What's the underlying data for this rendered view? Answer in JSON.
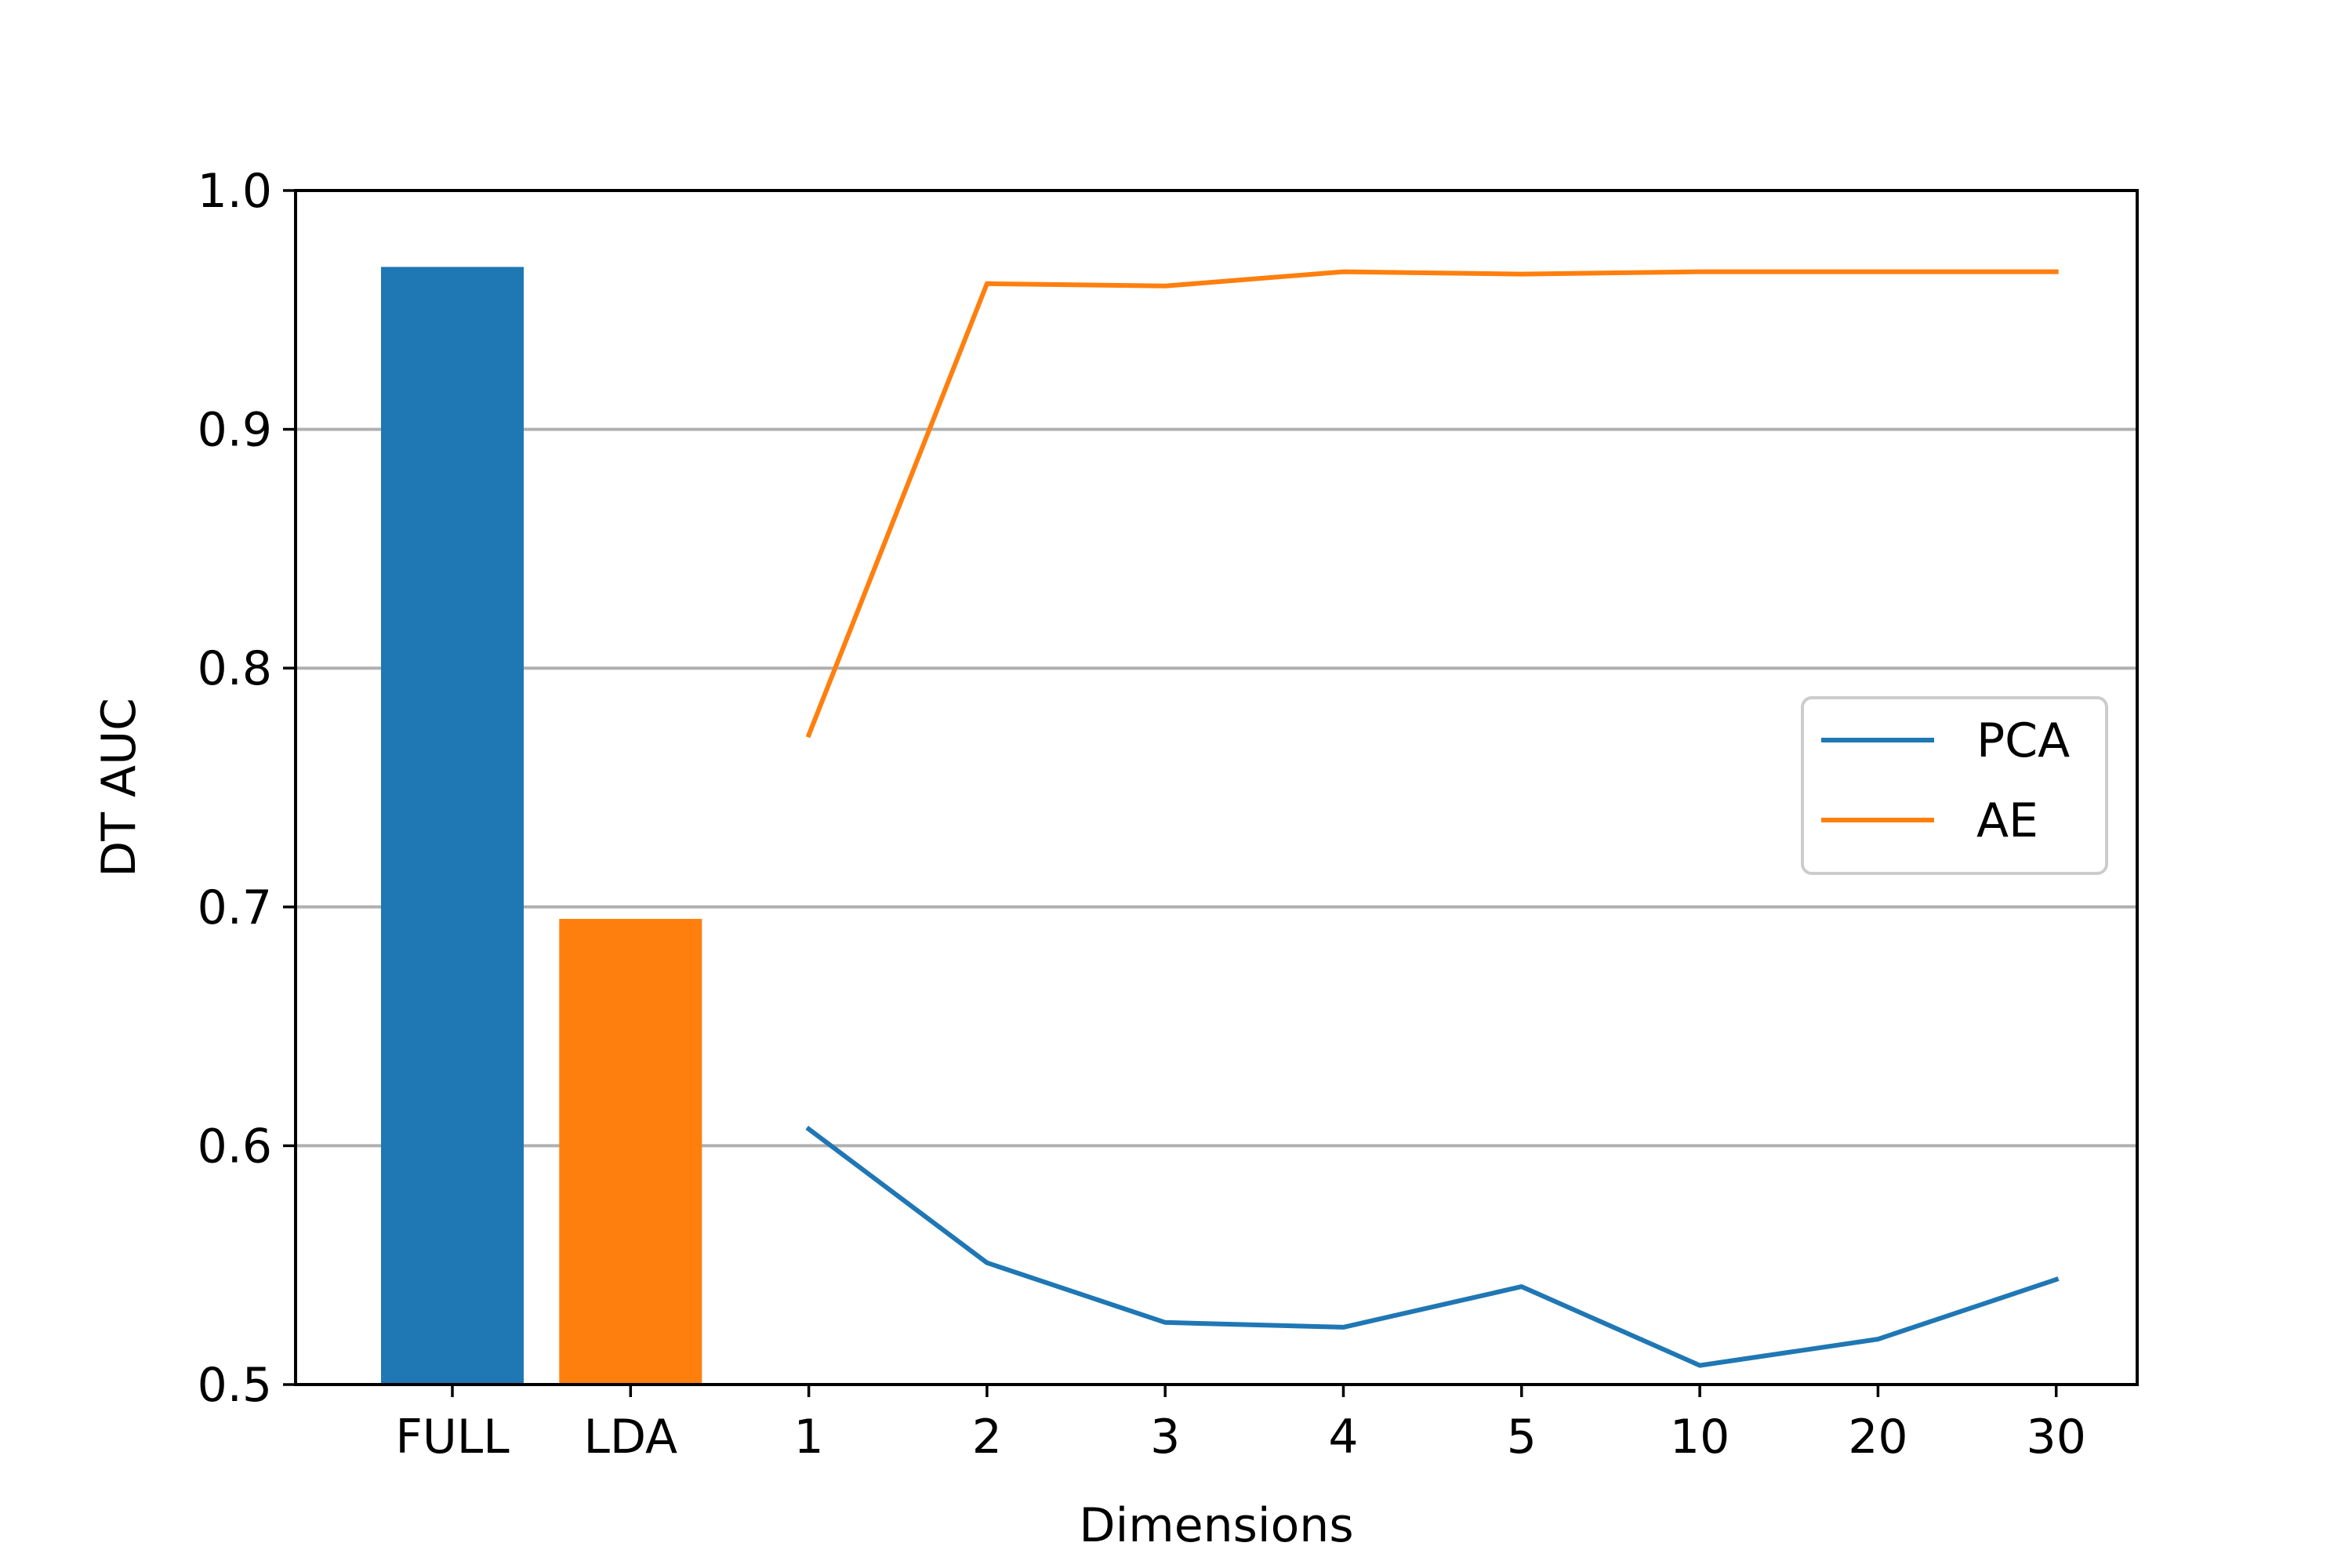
{
  "chart_data": {
    "type": "bar+line",
    "x_categories": [
      "FULL",
      "LDA",
      "1",
      "2",
      "3",
      "4",
      "5",
      "10",
      "20",
      "30"
    ],
    "bars": [
      {
        "category": "FULL",
        "value": 0.968,
        "color": "#1f77b4"
      },
      {
        "category": "LDA",
        "value": 0.695,
        "color": "#ff7f0e"
      }
    ],
    "series": [
      {
        "name": "PCA",
        "color": "#1f77b4",
        "x": [
          "1",
          "2",
          "3",
          "4",
          "5",
          "10",
          "20",
          "30"
        ],
        "values": [
          0.607,
          0.551,
          0.526,
          0.524,
          0.541,
          0.508,
          0.519,
          0.544
        ]
      },
      {
        "name": "AE",
        "color": "#ff7f0e",
        "x": [
          "1",
          "2",
          "3",
          "4",
          "5",
          "10",
          "20",
          "30"
        ],
        "values": [
          0.772,
          0.961,
          0.96,
          0.966,
          0.965,
          0.966,
          0.966,
          0.966
        ]
      }
    ],
    "xlabel": "Dimensions",
    "ylabel": "DT AUC",
    "ylim": [
      0.5,
      1.0
    ],
    "y_ticks": [
      "0.5",
      "0.6",
      "0.7",
      "0.8",
      "0.9",
      "1.0"
    ],
    "grid": "horizontal",
    "legend_position": "center-right"
  }
}
